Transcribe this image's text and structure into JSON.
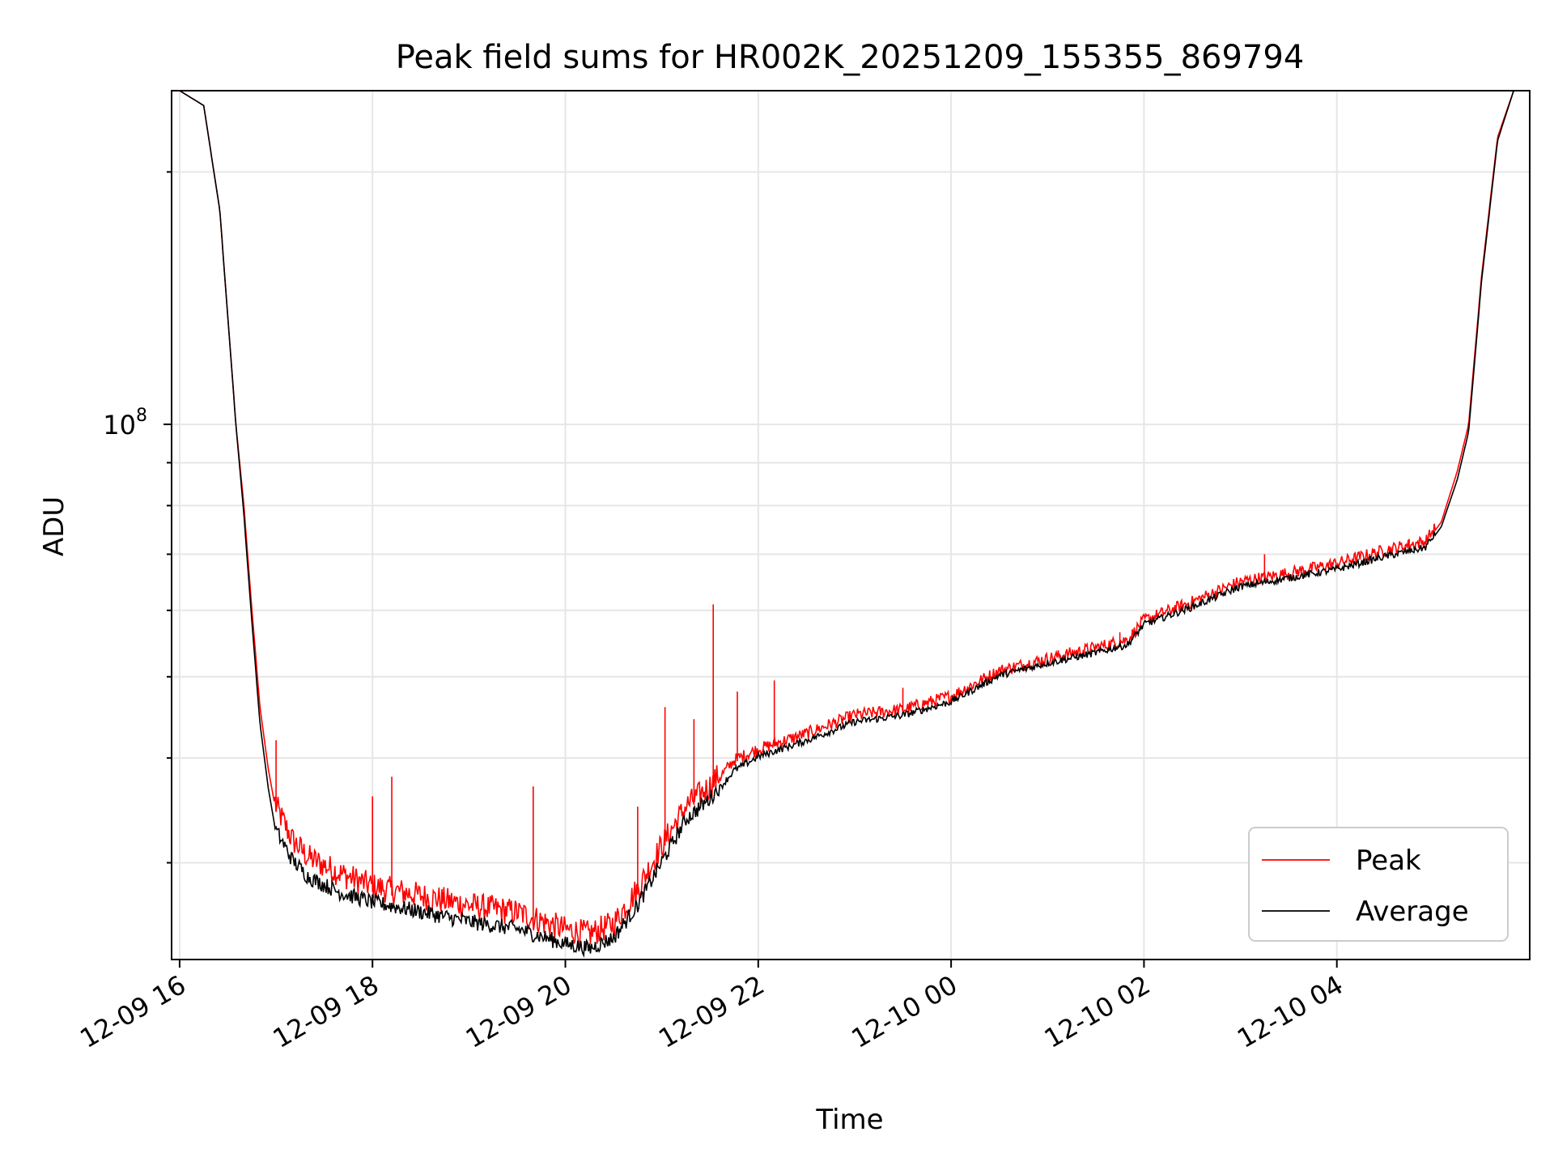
{
  "chart_data": {
    "type": "line",
    "title": "Peak field sums for HR002K_20251209_155355_869794",
    "xlabel": "Time",
    "ylabel": "ADU",
    "x_ticks": [
      {
        "t": "2025-12-09T16:00",
        "label": "12-09 16"
      },
      {
        "t": "2025-12-09T18:00",
        "label": "12-09 18"
      },
      {
        "t": "2025-12-09T20:00",
        "label": "12-09 20"
      },
      {
        "t": "2025-12-09T22:00",
        "label": "12-09 22"
      },
      {
        "t": "2025-12-10T00:00",
        "label": "12-10 00"
      },
      {
        "t": "2025-12-10T02:00",
        "label": "12-10 02"
      },
      {
        "t": "2025-12-10T04:00",
        "label": "12-10 04"
      }
    ],
    "y_tick_labels": [
      {
        "value": 100000000,
        "base": "10",
        "exp": "8"
      }
    ],
    "yscale": "log",
    "xlim": [
      "2025-12-09T15:55",
      "2025-12-10T06:00"
    ],
    "ylim": [
      23000000,
      250000000
    ],
    "grid": true,
    "legend": {
      "position": "lower right"
    },
    "series": [
      {
        "name": "Peak",
        "color": "#ff0000",
        "points": [
          [
            "2025-12-09T16:00",
            250000000
          ],
          [
            "2025-12-09T16:15",
            240000000
          ],
          [
            "2025-12-09T16:25",
            180000000
          ],
          [
            "2025-12-09T16:35",
            100000000
          ],
          [
            "2025-12-09T16:40",
            80000000
          ],
          [
            "2025-12-09T16:45",
            60000000
          ],
          [
            "2025-12-09T16:50",
            46000000
          ],
          [
            "2025-12-09T16:55",
            39000000
          ],
          [
            "2025-12-09T17:00",
            34500000
          ],
          [
            "2025-12-09T17:10",
            31500000
          ],
          [
            "2025-12-09T17:20",
            30000000
          ],
          [
            "2025-12-09T17:40",
            28700000
          ],
          [
            "2025-12-09T18:00",
            27700000
          ],
          [
            "2025-12-09T18:30",
            27000000
          ],
          [
            "2025-12-09T19:00",
            26300000
          ],
          [
            "2025-12-09T19:30",
            25800000
          ],
          [
            "2025-12-09T20:00",
            24600000
          ],
          [
            "2025-12-09T20:15",
            24300000
          ],
          [
            "2025-12-09T20:30",
            25000000
          ],
          [
            "2025-12-09T20:45",
            27500000
          ],
          [
            "2025-12-09T21:00",
            31000000
          ],
          [
            "2025-12-09T21:15",
            34500000
          ],
          [
            "2025-12-09T21:30",
            36500000
          ],
          [
            "2025-12-09T21:45",
            39500000
          ],
          [
            "2025-12-09T22:00",
            40700000
          ],
          [
            "2025-12-09T22:30",
            42500000
          ],
          [
            "2025-12-09T23:00",
            44700000
          ],
          [
            "2025-12-09T23:30",
            45400000
          ],
          [
            "2025-12-10T00:00",
            47100000
          ],
          [
            "2025-12-10T00:30",
            50500000
          ],
          [
            "2025-12-10T01:00",
            52200000
          ],
          [
            "2025-12-10T01:30",
            53800000
          ],
          [
            "2025-12-10T01:50",
            55000000
          ],
          [
            "2025-12-10T02:00",
            58000000
          ],
          [
            "2025-12-10T02:30",
            61000000
          ],
          [
            "2025-12-10T03:00",
            64500000
          ],
          [
            "2025-12-10T03:30",
            66000000
          ],
          [
            "2025-12-10T04:00",
            67800000
          ],
          [
            "2025-12-10T04:30",
            70300000
          ],
          [
            "2025-12-10T04:55",
            72000000
          ],
          [
            "2025-12-10T05:05",
            76500000
          ],
          [
            "2025-12-10T05:15",
            88000000
          ],
          [
            "2025-12-10T05:22",
            100000000
          ],
          [
            "2025-12-10T05:30",
            150000000
          ],
          [
            "2025-12-10T05:40",
            220000000
          ],
          [
            "2025-12-10T05:50",
            250000000
          ],
          [
            "2025-12-10T06:00",
            250000000
          ]
        ],
        "spikes": [
          [
            "2025-12-09T17:00",
            42000000
          ],
          [
            "2025-12-09T18:12",
            38000000
          ],
          [
            "2025-12-09T18:00",
            36000000
          ],
          [
            "2025-12-09T19:40",
            37000000
          ],
          [
            "2025-12-09T20:45",
            35000000
          ],
          [
            "2025-12-09T21:02",
            46000000
          ],
          [
            "2025-12-09T21:20",
            44500000
          ],
          [
            "2025-12-09T21:32",
            61000000
          ],
          [
            "2025-12-09T21:47",
            48000000
          ],
          [
            "2025-12-09T22:10",
            49500000
          ],
          [
            "2025-12-09T23:30",
            48500000
          ],
          [
            "2025-12-10T00:30",
            50500000
          ],
          [
            "2025-12-10T01:45",
            56500000
          ],
          [
            "2025-12-10T03:15",
            70000000
          ],
          [
            "2025-12-10T04:45",
            73000000
          ]
        ]
      },
      {
        "name": "Average",
        "color": "#000000",
        "points": [
          [
            "2025-12-09T16:00",
            250000000
          ],
          [
            "2025-12-09T16:15",
            240000000
          ],
          [
            "2025-12-09T16:25",
            180000000
          ],
          [
            "2025-12-09T16:35",
            100000000
          ],
          [
            "2025-12-09T16:40",
            78000000
          ],
          [
            "2025-12-09T16:45",
            58000000
          ],
          [
            "2025-12-09T16:50",
            44000000
          ],
          [
            "2025-12-09T16:55",
            37000000
          ],
          [
            "2025-12-09T17:00",
            32500000
          ],
          [
            "2025-12-09T17:10",
            30000000
          ],
          [
            "2025-12-09T17:20",
            28600000
          ],
          [
            "2025-12-09T17:40",
            27400000
          ],
          [
            "2025-12-09T18:00",
            26700000
          ],
          [
            "2025-12-09T18:30",
            26000000
          ],
          [
            "2025-12-09T19:00",
            25300000
          ],
          [
            "2025-12-09T19:30",
            24800000
          ],
          [
            "2025-12-09T20:00",
            23800000
          ],
          [
            "2025-12-09T20:15",
            23500000
          ],
          [
            "2025-12-09T20:30",
            24200000
          ],
          [
            "2025-12-09T20:45",
            26500000
          ],
          [
            "2025-12-09T21:00",
            29800000
          ],
          [
            "2025-12-09T21:15",
            33500000
          ],
          [
            "2025-12-09T21:30",
            35500000
          ],
          [
            "2025-12-09T21:45",
            38500000
          ],
          [
            "2025-12-09T22:00",
            40000000
          ],
          [
            "2025-12-09T22:30",
            41800000
          ],
          [
            "2025-12-09T23:00",
            44000000
          ],
          [
            "2025-12-09T23:30",
            44800000
          ],
          [
            "2025-12-10T00:00",
            46500000
          ],
          [
            "2025-12-10T00:30",
            50000000
          ],
          [
            "2025-12-10T01:00",
            51700000
          ],
          [
            "2025-12-10T01:30",
            53200000
          ],
          [
            "2025-12-10T01:50",
            54400000
          ],
          [
            "2025-12-10T02:00",
            57500000
          ],
          [
            "2025-12-10T02:30",
            60300000
          ],
          [
            "2025-12-10T03:00",
            63800000
          ],
          [
            "2025-12-10T03:30",
            65300000
          ],
          [
            "2025-12-10T04:00",
            66900000
          ],
          [
            "2025-12-10T04:30",
            69300000
          ],
          [
            "2025-12-10T04:55",
            71000000
          ],
          [
            "2025-12-10T05:05",
            75500000
          ],
          [
            "2025-12-10T05:15",
            86000000
          ],
          [
            "2025-12-10T05:22",
            98000000
          ],
          [
            "2025-12-10T05:30",
            148000000
          ],
          [
            "2025-12-10T05:40",
            218000000
          ],
          [
            "2025-12-10T05:50",
            250000000
          ],
          [
            "2025-12-10T06:00",
            250000000
          ]
        ]
      }
    ]
  }
}
